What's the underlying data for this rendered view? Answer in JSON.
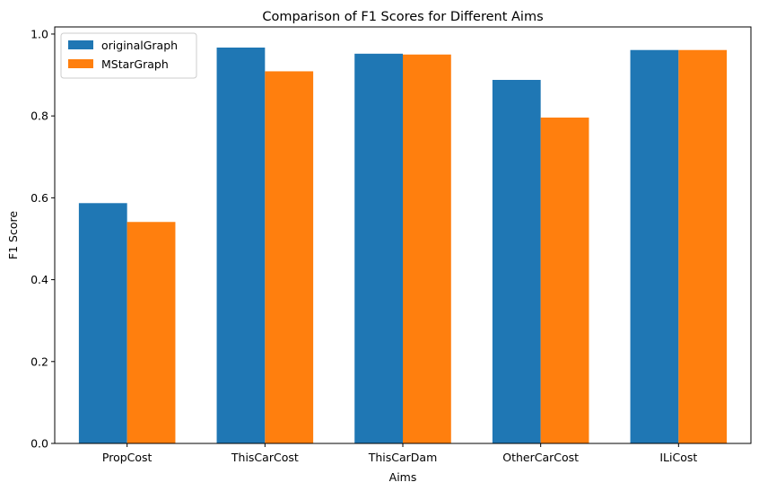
{
  "chart_data": {
    "type": "bar",
    "title": "Comparison of F1 Scores for Different Aims",
    "xlabel": "Aims",
    "ylabel": "F1 Score",
    "categories": [
      "PropCost",
      "ThisCarCost",
      "ThisCarDam",
      "OtherCarCost",
      "ILiCost"
    ],
    "series": [
      {
        "name": "originalGraph",
        "color": "#1f77b4",
        "values": [
          0.587,
          0.967,
          0.952,
          0.888,
          0.961
        ]
      },
      {
        "name": "MStarGraph",
        "color": "#ff7f0e",
        "values": [
          0.541,
          0.909,
          0.95,
          0.796,
          0.961
        ]
      }
    ],
    "ylim": [
      0,
      1.0
    ],
    "yticks": [
      "0.0",
      "0.2",
      "0.4",
      "0.6",
      "0.8",
      "1.0"
    ],
    "grid": false,
    "legend_position": "top-left"
  }
}
